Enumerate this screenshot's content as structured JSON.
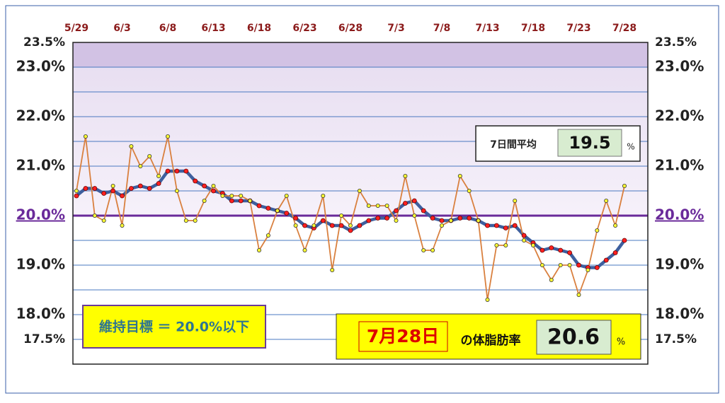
{
  "chart_data": {
    "type": "line",
    "categories": [
      "5/29",
      null,
      null,
      null,
      null,
      "6/3",
      null,
      null,
      null,
      null,
      "6/8",
      null,
      null,
      null,
      null,
      "6/13",
      null,
      null,
      null,
      null,
      "6/18",
      null,
      null,
      null,
      null,
      "6/23",
      null,
      null,
      null,
      null,
      "6/28",
      null,
      null,
      null,
      null,
      "7/3",
      null,
      null,
      null,
      null,
      "7/8",
      null,
      null,
      null,
      null,
      "7/13",
      null,
      null,
      null,
      null,
      "7/18",
      null,
      null,
      null,
      null,
      "7/23",
      null,
      null,
      null,
      null,
      "7/28"
    ],
    "series": [
      {
        "color": "#d9803f",
        "marker_color": "#ffff33",
        "values": [
          20.5,
          21.6,
          20.0,
          19.9,
          20.6,
          19.8,
          21.4,
          21.0,
          21.2,
          20.8,
          21.6,
          20.5,
          19.9,
          19.9,
          20.3,
          20.6,
          20.4,
          20.4,
          20.4,
          20.3,
          19.3,
          19.6,
          20.1,
          20.4,
          19.8,
          19.3,
          19.8,
          20.4,
          18.9,
          20.0,
          19.8,
          20.5,
          20.2,
          20.2,
          20.2,
          19.9,
          20.8,
          20.0,
          19.3,
          19.3,
          19.8,
          19.9,
          20.8,
          20.5,
          19.9,
          18.3,
          19.4,
          19.4,
          20.3,
          19.5,
          19.4,
          19.0,
          18.7,
          19.0,
          19.0,
          18.4,
          18.9,
          19.7,
          20.3,
          19.8,
          20.6
        ]
      },
      {
        "color": "#3e5f9e",
        "marker_color": "#ff2020",
        "values": [
          20.4,
          20.55,
          20.55,
          20.45,
          20.5,
          20.4,
          20.55,
          20.6,
          20.55,
          20.65,
          20.9,
          20.9,
          20.9,
          20.7,
          20.6,
          20.5,
          20.45,
          20.3,
          20.3,
          20.3,
          20.2,
          20.15,
          20.1,
          20.05,
          19.95,
          19.8,
          19.75,
          19.9,
          19.8,
          19.8,
          19.7,
          19.8,
          19.9,
          19.95,
          19.95,
          20.1,
          20.25,
          20.3,
          20.1,
          19.95,
          19.9,
          19.9,
          19.95,
          19.95,
          19.9,
          19.8,
          19.8,
          19.75,
          19.8,
          19.6,
          19.45,
          19.3,
          19.35,
          19.3,
          19.25,
          19.0,
          18.95,
          18.95,
          19.1,
          19.25,
          19.5
        ]
      }
    ],
    "ylim": [
      17,
      23.5
    ],
    "yticks": [
      {
        "value": 17.5,
        "label": "17.5%"
      },
      {
        "value": 18,
        "label": "18.0%"
      },
      {
        "value": 19,
        "label": "19.0%"
      },
      {
        "value": 20,
        "label": "20.0%"
      },
      {
        "value": 21,
        "label": "21.0%"
      },
      {
        "value": 22,
        "label": "22.0%"
      },
      {
        "value": 23,
        "label": "23.0%"
      },
      {
        "value": 23.5,
        "label": "23.5%"
      }
    ],
    "yticks_minor": [
      18.5,
      19.5,
      20.5,
      21.5,
      22.5
    ],
    "target_line": 20,
    "grid": true,
    "avg_box": {
      "label": "7日間平均",
      "value": 19.5,
      "unit": "%"
    },
    "target_text": "維持目標 ＝ 20.0%以下",
    "latest_box": {
      "date": "7月28日",
      "label": "の体脂肪率",
      "value": 20.6,
      "unit": "%"
    }
  }
}
